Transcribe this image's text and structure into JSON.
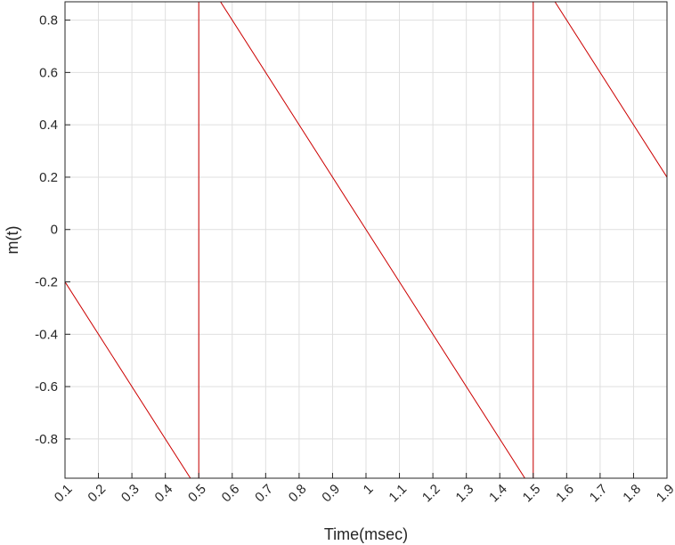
{
  "chart_data": {
    "type": "line",
    "title": "",
    "xlabel": "Time(msec)",
    "ylabel": "m(t)",
    "xlim": [
      0.1,
      1.9
    ],
    "ylim": [
      -0.95,
      0.87
    ],
    "grid": true,
    "line_color": "#cc0000",
    "x_ticks": [
      0.1,
      0.2,
      0.3,
      0.4,
      0.5,
      0.6,
      0.7,
      0.8,
      0.9,
      1,
      1.1,
      1.2,
      1.3,
      1.4,
      1.5,
      1.6,
      1.7,
      1.8,
      1.9
    ],
    "x_tick_labels": [
      "0.1",
      "0.2",
      "0.3",
      "0.4",
      "0.5",
      "0.6",
      "0.7",
      "0.8",
      "0.9",
      "1",
      "1.1",
      "1.2",
      "1.3",
      "1.4",
      "1.5",
      "1.6",
      "1.7",
      "1.8",
      "1.9"
    ],
    "y_ticks": [
      0.8,
      0.6,
      0.4,
      0.2,
      0,
      -0.2,
      -0.4,
      -0.6,
      -0.8
    ],
    "y_tick_labels": [
      "0.8",
      "0.6",
      "0.4",
      "0.2",
      "0",
      "-0.2",
      "-0.4",
      "-0.6",
      "-0.8"
    ],
    "series": [
      {
        "x": [
          0.1,
          0.5,
          0.5,
          1.5,
          1.5,
          1.9
        ],
        "y": [
          -0.2,
          -1.0,
          1.0,
          -1.0,
          1.0,
          0.2
        ]
      }
    ]
  }
}
